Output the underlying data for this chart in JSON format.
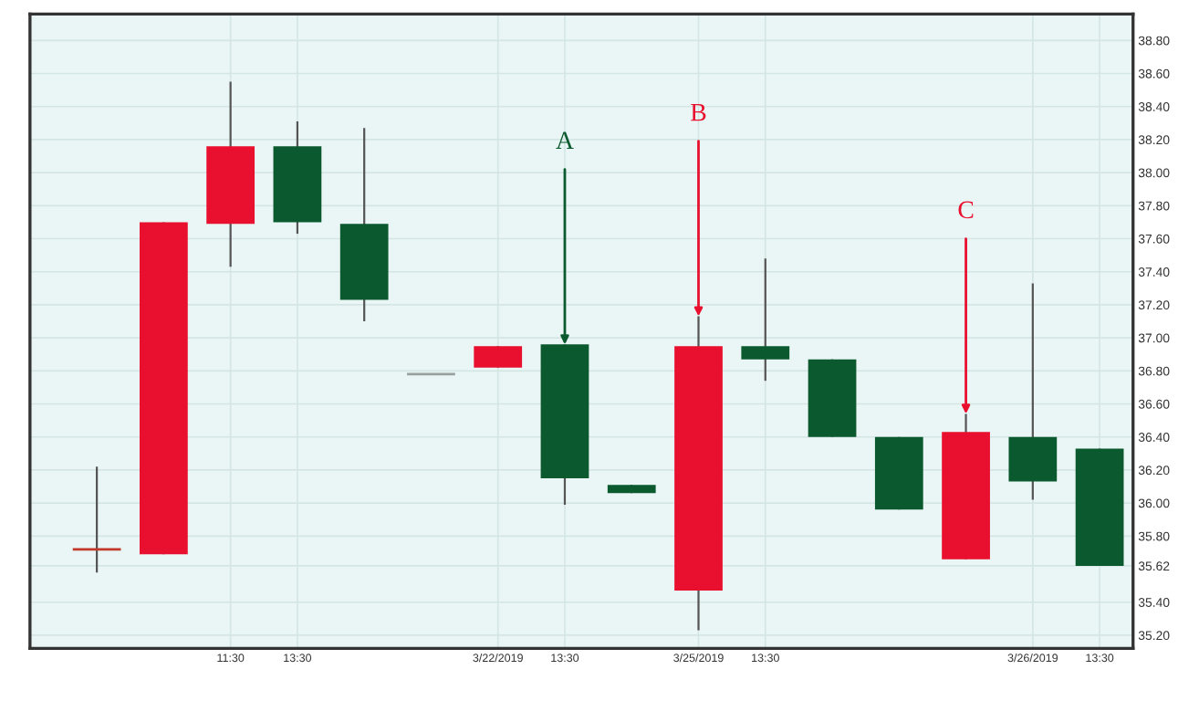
{
  "chart_data": {
    "type": "candlestick",
    "categories": [
      null,
      null,
      "11:30",
      "13:30",
      null,
      null,
      "3/22/2019",
      "13:30",
      null,
      "3/25/2019",
      "13:30",
      null,
      null,
      null,
      "3/26/2019",
      "13:30"
    ],
    "ohlc": [
      [
        35.72,
        36.22,
        35.58,
        35.72
      ],
      [
        35.69,
        37.7,
        35.69,
        37.7
      ],
      [
        37.69,
        38.55,
        37.43,
        38.16
      ],
      [
        38.16,
        38.31,
        37.63,
        37.7
      ],
      [
        37.69,
        38.27,
        37.1,
        37.23
      ],
      [
        36.78,
        36.78,
        36.78,
        36.78
      ],
      [
        36.82,
        36.95,
        36.82,
        36.95
      ],
      [
        36.96,
        36.96,
        35.99,
        36.15
      ],
      [
        36.11,
        36.11,
        36.06,
        36.06
      ],
      [
        35.47,
        37.13,
        35.23,
        36.95
      ],
      [
        36.95,
        37.48,
        36.74,
        36.87
      ],
      [
        36.87,
        36.87,
        36.4,
        36.4
      ],
      [
        36.4,
        36.4,
        35.96,
        35.96
      ],
      [
        35.66,
        36.54,
        35.66,
        36.43
      ],
      [
        36.4,
        37.33,
        36.02,
        36.13
      ],
      [
        36.33,
        36.33,
        35.62,
        35.62
      ]
    ],
    "colors": [
      "#c0392b",
      "#e8102e",
      "#e8102e",
      "#0b5a2f",
      "#0b5a2f",
      "#9aa0a0",
      "#e8102e",
      "#0b5a2f",
      "#0b5a2f",
      "#e8102e",
      "#0b5a2f",
      "#0b5a2f",
      "#0b5a2f",
      "#e8102e",
      "#0b5a2f",
      "#0b5a2f"
    ],
    "ylim": [
      35.12,
      38.96
    ],
    "yticks": [
      {
        "value": 38.8,
        "label": "38.80"
      },
      {
        "value": 38.6,
        "label": "38.60"
      },
      {
        "value": 38.4,
        "label": "38.40"
      },
      {
        "value": 38.2,
        "label": "38.20"
      },
      {
        "value": 38.0,
        "label": "38.00"
      },
      {
        "value": 37.8,
        "label": "37.80"
      },
      {
        "value": 37.6,
        "label": "37.60"
      },
      {
        "value": 37.4,
        "label": "37.40"
      },
      {
        "value": 37.2,
        "label": "37.20"
      },
      {
        "value": 37.0,
        "label": "37.00"
      },
      {
        "value": 36.8,
        "label": "36.80"
      },
      {
        "value": 36.6,
        "label": "36.60"
      },
      {
        "value": 36.4,
        "label": "36.40"
      },
      {
        "value": 36.2,
        "label": "36.20"
      },
      {
        "value": 36.0,
        "label": "36.00"
      },
      {
        "value": 35.8,
        "label": "35.80"
      },
      35.62,
      {
        "value": 35.4,
        "label": "35.40"
      },
      {
        "value": 35.2,
        "label": "35.20"
      }
    ],
    "annotations": [
      {
        "text": "A",
        "y": 36.96
      },
      {
        "text": "B",
        "x": "3/25/2019",
        "y": 37.13
      },
      {
        "text": "C",
        "y": 36.54
      }
    ],
    "grid": true
  }
}
